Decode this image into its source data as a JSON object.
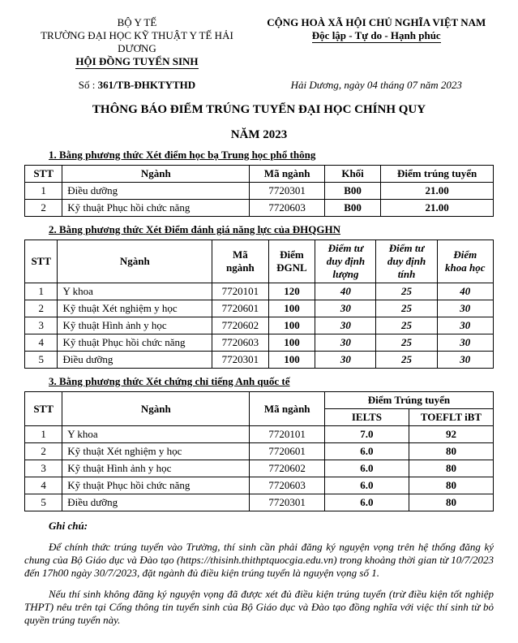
{
  "header": {
    "ministry": "BỘ Y TẾ",
    "school": "TRƯỜNG ĐẠI HỌC KỸ THUẬT Y TẾ HẢI DƯƠNG",
    "council": "HỘI ĐỒNG TUYỂN SINH",
    "nation": "CỘNG HOÀ XÃ HỘI CHỦ NGHĨA VIỆT NAM",
    "motto": "Độc lập - Tự do - Hạnh phúc"
  },
  "docno": {
    "label": "Số :",
    "number": "361/TB-ĐHKTYTHD",
    "place_date": "Hải Dương, ngày  04  tháng 07  năm 2023"
  },
  "title_line1": "THÔNG BÁO ĐIỂM TRÚNG TUYỂN ĐẠI HỌC CHÍNH QUY",
  "title_line2": "NĂM 2023",
  "section1": {
    "title": "1.  Bằng phương thức Xét điểm học bạ Trung học phổ thông",
    "cols": [
      "STT",
      "Ngành",
      "Mã ngành",
      "Khối",
      "Điểm trúng tuyển"
    ],
    "rows": [
      [
        "1",
        "Điều dưỡng",
        "7720301",
        "B00",
        "21.00"
      ],
      [
        "2",
        "Kỹ thuật Phục hồi chức năng",
        "7720603",
        "B00",
        "21.00"
      ]
    ]
  },
  "section2": {
    "title": "2.  Bằng phương thức Xét Điểm đánh giá năng lực của ĐHQGHN",
    "cols": [
      "STT",
      "Ngành",
      "Mã ngành",
      "Điểm ĐGNL",
      "Điểm tư duy định lượng",
      "Điểm tư duy định tính",
      "Điểm khoa học"
    ],
    "rows": [
      [
        "1",
        "Y khoa",
        "7720101",
        "120",
        "40",
        "25",
        "40"
      ],
      [
        "2",
        "Kỹ thuật Xét nghiệm y học",
        "7720601",
        "100",
        "30",
        "25",
        "30"
      ],
      [
        "3",
        "Kỹ thuật Hình ảnh y học",
        "7720602",
        "100",
        "30",
        "25",
        "30"
      ],
      [
        "4",
        "Kỹ thuật Phục hồi chức năng",
        "7720603",
        "100",
        "30",
        "25",
        "30"
      ],
      [
        "5",
        "Điều dưỡng",
        "7720301",
        "100",
        "30",
        "25",
        "30"
      ]
    ]
  },
  "section3": {
    "title": "3.  Bằng phương thức Xét chứng chỉ tiếng Anh quốc tế",
    "group_header": "Điểm Trúng tuyển",
    "cols": [
      "STT",
      "Ngành",
      "Mã ngành",
      "IELTS",
      "TOEFLT iBT"
    ],
    "rows": [
      [
        "1",
        "Y khoa",
        "7720101",
        "7.0",
        "92"
      ],
      [
        "2",
        "Kỹ thuật Xét nghiệm y học",
        "7720601",
        "6.0",
        "80"
      ],
      [
        "3",
        "Kỹ thuật Hình ảnh y học",
        "7720602",
        "6.0",
        "80"
      ],
      [
        "4",
        "Kỹ thuật Phục hồi chức năng",
        "7720603",
        "6.0",
        "80"
      ],
      [
        "5",
        "Điều dưỡng",
        "7720301",
        "6.0",
        "80"
      ]
    ]
  },
  "note_label": "Ghi chú:",
  "note1": "Để chính thức trúng tuyển vào Trường, thí sinh cần phải đăng ký nguyện vọng trên hệ thống đăng ký chung của Bộ Giáo dục và Đào tạo (https://thisinh.thithptquocgia.edu.vn) trong khoảng thời gian từ 10/7/2023 đến 17h00 ngày 30/7/2023, đặt ngành đủ điều kiện trúng tuyển là nguyện vọng số 1.",
  "note2": "Nếu thí sinh không đăng ký nguyện vọng đã được xét đủ điều kiện trúng tuyển (trừ điều kiện tốt nghiệp THPT) nêu trên tại Cổng thông tin tuyển sinh của Bộ Giáo dục và Đào tạo đồng nghĩa với việc thí sinh từ bỏ quyền trúng tuyển này."
}
